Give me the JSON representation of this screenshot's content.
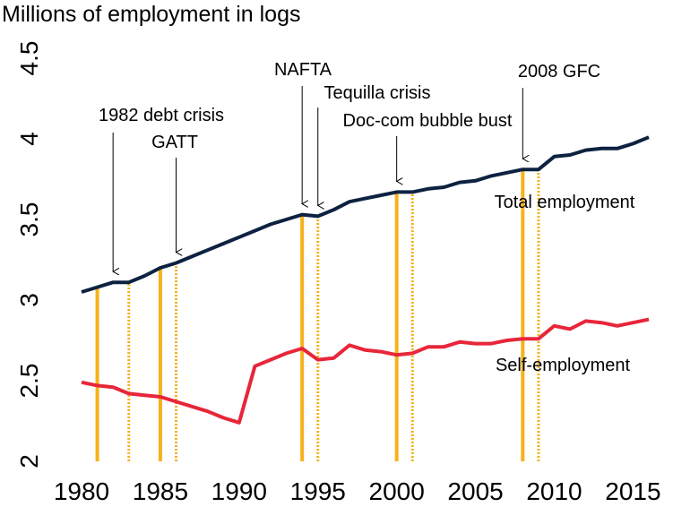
{
  "chart_data": {
    "type": "line",
    "title": "Millions of employment in logs",
    "x": [
      1980,
      1981,
      1982,
      1983,
      1984,
      1985,
      1986,
      1987,
      1988,
      1989,
      1990,
      1991,
      1992,
      1993,
      1994,
      1995,
      1996,
      1997,
      1998,
      1999,
      2000,
      2001,
      2002,
      2003,
      2004,
      2005,
      2006,
      2007,
      2008,
      2009,
      2010,
      2011,
      2012,
      2013,
      2014,
      2015,
      2016
    ],
    "series": [
      {
        "name": "Total employment",
        "color": "#0d2240",
        "values": [
          3.05,
          3.08,
          3.11,
          3.11,
          3.15,
          3.2,
          3.23,
          3.27,
          3.31,
          3.35,
          3.39,
          3.43,
          3.47,
          3.5,
          3.53,
          3.52,
          3.56,
          3.61,
          3.63,
          3.65,
          3.67,
          3.67,
          3.69,
          3.7,
          3.73,
          3.74,
          3.77,
          3.79,
          3.81,
          3.81,
          3.89,
          3.9,
          3.93,
          3.94,
          3.94,
          3.97,
          4.01
        ]
      },
      {
        "name": "Self-employment",
        "color": "#e8263a",
        "values": [
          2.49,
          2.47,
          2.46,
          2.42,
          2.41,
          2.4,
          2.37,
          2.34,
          2.31,
          2.27,
          2.24,
          2.59,
          2.63,
          2.67,
          2.7,
          2.63,
          2.64,
          2.72,
          2.69,
          2.68,
          2.66,
          2.67,
          2.71,
          2.71,
          2.74,
          2.73,
          2.73,
          2.75,
          2.76,
          2.76,
          2.84,
          2.82,
          2.87,
          2.86,
          2.84,
          2.86,
          2.88
        ]
      }
    ],
    "crisis_color": "#f5b21a",
    "crises": [
      {
        "start": 1981,
        "end": 1983
      },
      {
        "start": 1985,
        "end": 1986
      },
      {
        "start": 1994,
        "end": 1995
      },
      {
        "start": 2000,
        "end": 2001
      },
      {
        "start": 2008,
        "end": 2009
      }
    ],
    "annotations": [
      {
        "text": "1982 debt crisis",
        "x": 1982
      },
      {
        "text": "GATT",
        "x": 1986
      },
      {
        "text": "NAFTA",
        "x": 1994
      },
      {
        "text": "Tequilla crisis",
        "x": 1995
      },
      {
        "text": "Doc-com bubble bust",
        "x": 2000
      },
      {
        "text": "2008 GFC",
        "x": 2008
      }
    ],
    "xlim": [
      1980,
      2016
    ],
    "xticks": [
      1980,
      1985,
      1990,
      1995,
      2000,
      2005,
      2010,
      2015
    ],
    "ylim": [
      2,
      4.5
    ],
    "yticks": [
      2,
      2.5,
      3,
      3.5,
      4,
      4.5
    ],
    "grid": false
  }
}
